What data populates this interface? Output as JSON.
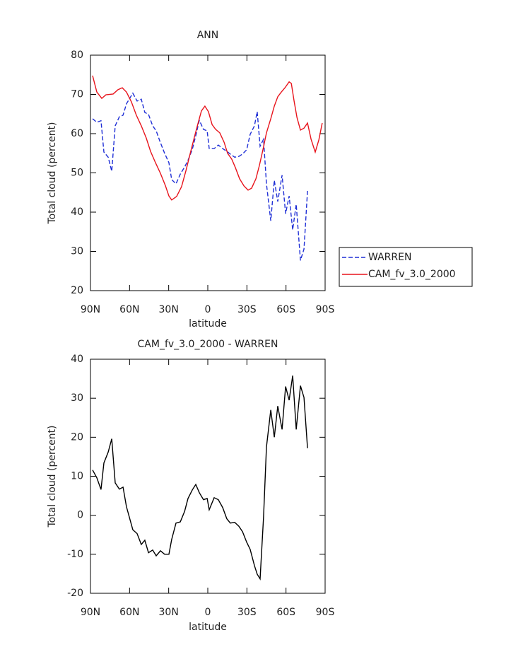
{
  "chart_data": [
    {
      "type": "line",
      "title": "ANN",
      "xlabel": "latitude",
      "ylabel": "Total cloud (percent)",
      "xlim": [
        90,
        -90
      ],
      "xticks": [
        {
          "value": 90,
          "label": "90N"
        },
        {
          "value": 60,
          "label": "60N"
        },
        {
          "value": 30,
          "label": "30N"
        },
        0,
        {
          "value": -30,
          "label": "30S"
        },
        {
          "value": -60,
          "label": "60S"
        },
        {
          "value": -90,
          "label": "90S"
        }
      ],
      "ylim": [
        20,
        80
      ],
      "yticks": [
        20,
        30,
        40,
        50,
        60,
        70,
        80
      ],
      "legend": "outside-right",
      "series": [
        {
          "name": "WARREN",
          "color": "#1f2fd6",
          "style": "dashed",
          "x": [
            88.4,
            85.1,
            81.9,
            79.7,
            76.4,
            73.7,
            71,
            67.8,
            65,
            62.4,
            57.5,
            54.2,
            51,
            48.3,
            45.5,
            42.3,
            39.6,
            36.3,
            33.1,
            29.8,
            27.7,
            24.4,
            21.1,
            17.8,
            15.2,
            11.9,
            9.2,
            6.5,
            3.3,
            0.5,
            -1.1,
            -4.9,
            -8.1,
            -11.4,
            -14.6,
            -17.3,
            -20.6,
            -23.8,
            -26.6,
            -29.8,
            -32.5,
            -35.8,
            -37.9,
            -40.1,
            -42.8,
            -45,
            -48.3,
            -51,
            -53.7,
            -57,
            -59.7,
            -62.4,
            -65.1,
            -67.8,
            -71.1,
            -73.8,
            -76.5
          ],
          "values": [
            63.8,
            62.9,
            63.3,
            55.3,
            54,
            50.4,
            62,
            64.3,
            64.7,
            67.6,
            70.3,
            68.3,
            68.8,
            65.4,
            64.9,
            62,
            60.7,
            57.7,
            55,
            52.6,
            48.3,
            47.2,
            49.7,
            51.5,
            53.2,
            56,
            59.5,
            63.4,
            61.1,
            60.7,
            56.2,
            56.2,
            57.1,
            56.2,
            55.5,
            54.8,
            54,
            54.2,
            54.8,
            55.9,
            59.8,
            62,
            65.6,
            56.8,
            58.6,
            47.2,
            37.8,
            48.1,
            42.7,
            49.4,
            39.6,
            44.1,
            35.5,
            42,
            27.7,
            30.6,
            45.4
          ]
        },
        {
          "name": "CAM_fv_3.0_2000",
          "color": "#e8141c",
          "style": "solid",
          "x": [
            88.4,
            85.1,
            81.3,
            78.1,
            72.6,
            68.9,
            65.6,
            62.4,
            58.6,
            54.8,
            51,
            47.2,
            43.9,
            40.1,
            36.3,
            32.5,
            29.8,
            27.7,
            23.9,
            20.1,
            16.8,
            13.6,
            10.3,
            7.6,
            4.9,
            2.2,
            -0.5,
            -3.3,
            -6,
            -9.2,
            -12.5,
            -15.2,
            -18.4,
            -21.1,
            -24.4,
            -27.7,
            -30.9,
            -33.6,
            -36.9,
            -39.6,
            -42.3,
            -45,
            -48.3,
            -51,
            -53.7,
            -56.4,
            -59.2,
            -62.4,
            -64.1,
            -66.2,
            -68.4,
            -71.1,
            -73.8,
            -76.5,
            -79.2,
            -82.4,
            -85.2,
            -87.8
          ],
          "values": [
            74.8,
            70.6,
            69,
            69.9,
            70.1,
            71.2,
            71.7,
            70.6,
            68.1,
            64.7,
            62,
            58.9,
            55.5,
            52.6,
            49.9,
            46.7,
            44.1,
            43.1,
            44,
            46.5,
            50.5,
            54.8,
            59.1,
            62.5,
            65.8,
            67,
            65.6,
            62.3,
            61.1,
            60.2,
            57.8,
            55,
            53.5,
            51.4,
            48.5,
            46.7,
            45.6,
            46.1,
            48.5,
            51.9,
            55.9,
            60.2,
            63.8,
            67,
            69.4,
            70.6,
            71.7,
            73.2,
            72.8,
            68.3,
            64.1,
            60.9,
            61.4,
            62.7,
            58.6,
            55.3,
            58.4,
            62.7
          ]
        }
      ]
    },
    {
      "type": "line",
      "title": "CAM_fv_3.0_2000 - WARREN",
      "xlabel": "latitude",
      "ylabel": "Total cloud (percent)",
      "xlim": [
        90,
        -90
      ],
      "xticks": [
        {
          "value": 90,
          "label": "90N"
        },
        {
          "value": 60,
          "label": "60N"
        },
        {
          "value": 30,
          "label": "30N"
        },
        0,
        {
          "value": -30,
          "label": "30S"
        },
        {
          "value": -60,
          "label": "60S"
        },
        {
          "value": -90,
          "label": "90S"
        }
      ],
      "ylim": [
        -20,
        40
      ],
      "yticks": [
        -20,
        -10,
        0,
        10,
        20,
        30,
        40
      ],
      "series": [
        {
          "color": "#000000",
          "style": "solid",
          "x": [
            88.4,
            85.1,
            81.9,
            79.7,
            76.4,
            73.7,
            71,
            67.8,
            65,
            62.4,
            57.5,
            54.2,
            51,
            48.3,
            45.5,
            42.3,
            39.6,
            36.3,
            33.1,
            29.8,
            27.7,
            24.4,
            21.1,
            17.8,
            15.2,
            11.9,
            9.2,
            6.5,
            3.3,
            0.5,
            -1.1,
            -4.9,
            -8.1,
            -11.4,
            -14.6,
            -17.3,
            -20.6,
            -23.8,
            -26.6,
            -29.8,
            -32.5,
            -35.8,
            -37.9,
            -40.1,
            -42.8,
            -45,
            -48.3,
            -51,
            -53.7,
            -57,
            -59.7,
            -62.4,
            -65.1,
            -67.8,
            -71.1,
            -73.8,
            -76.5
          ],
          "values": [
            11.6,
            9.6,
            6.6,
            13.4,
            16.2,
            19.6,
            8.3,
            6.7,
            7.2,
            2.2,
            -3.7,
            -4.7,
            -7.5,
            -6.4,
            -9.6,
            -8.9,
            -10.4,
            -9.1,
            -10,
            -10,
            -6.2,
            -2,
            -1.7,
            1,
            4.3,
            6.5,
            7.9,
            5.8,
            4,
            4.3,
            1.4,
            4.5,
            4,
            2,
            -0.9,
            -2,
            -1.8,
            -2.8,
            -4.2,
            -6.9,
            -8.7,
            -12.9,
            -15.1,
            -16.3,
            -0.4,
            17.5,
            27,
            20,
            28,
            22,
            33,
            29.5,
            35.8,
            22,
            33.2,
            30.2,
            17.2
          ]
        }
      ]
    }
  ]
}
